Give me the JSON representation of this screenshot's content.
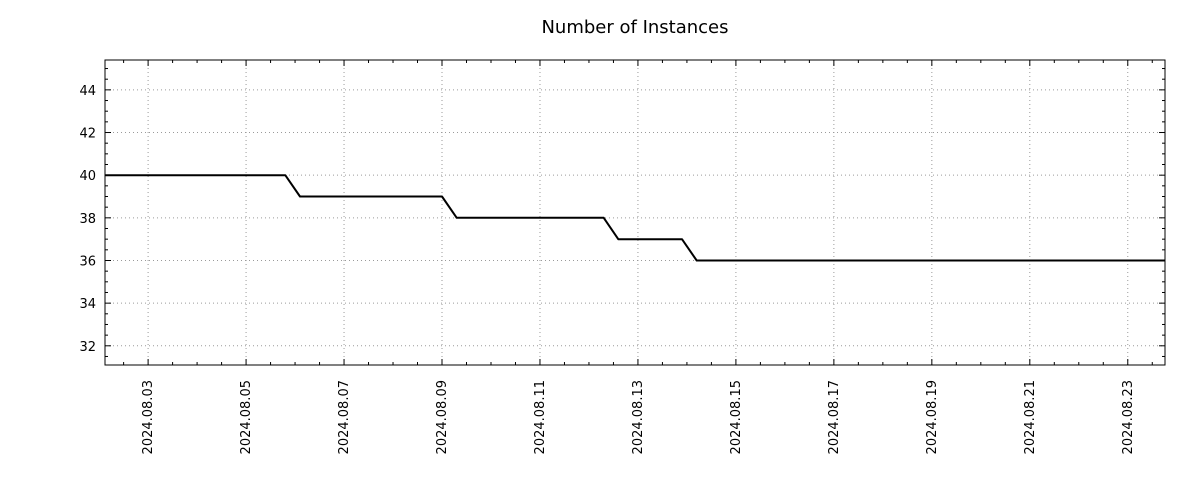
{
  "chart": {
    "title": "Number of Instances"
  },
  "chart_data": {
    "type": "line",
    "subtype": "step",
    "title": "Number of Instances",
    "xlabel": "",
    "ylabel": "",
    "x_unit": "date (year 2024, month 08, day of month)",
    "points": [
      {
        "x": 2.12,
        "y": 40
      },
      {
        "x": 5.8,
        "y": 40
      },
      {
        "x": 6.1,
        "y": 39
      },
      {
        "x": 9.0,
        "y": 39
      },
      {
        "x": 9.3,
        "y": 38
      },
      {
        "x": 12.3,
        "y": 38
      },
      {
        "x": 12.6,
        "y": 37
      },
      {
        "x": 13.9,
        "y": 37
      },
      {
        "x": 14.2,
        "y": 36
      },
      {
        "x": 23.76,
        "y": 36
      }
    ],
    "x_ticks": [
      {
        "value": 3,
        "label": "2024.08.03"
      },
      {
        "value": 5,
        "label": "2024.08.05"
      },
      {
        "value": 7,
        "label": "2024.08.07"
      },
      {
        "value": 9,
        "label": "2024.08.09"
      },
      {
        "value": 11,
        "label": "2024.08.11"
      },
      {
        "value": 13,
        "label": "2024.08.13"
      },
      {
        "value": 15,
        "label": "2024.08.15"
      },
      {
        "value": 17,
        "label": "2024.08.17"
      },
      {
        "value": 19,
        "label": "2024.08.19"
      },
      {
        "value": 21,
        "label": "2024.08.21"
      },
      {
        "value": 23,
        "label": "2024.08.23"
      }
    ],
    "y_ticks": [
      32,
      34,
      36,
      38,
      40,
      42,
      44
    ],
    "xlim": [
      2.12,
      23.76
    ],
    "ylim": [
      31.1,
      45.4
    ],
    "grid": true,
    "legend": "none",
    "line_color": "#000000",
    "line_width": 2,
    "grid_color": "#9a9a9a",
    "border_color": "#000000"
  }
}
